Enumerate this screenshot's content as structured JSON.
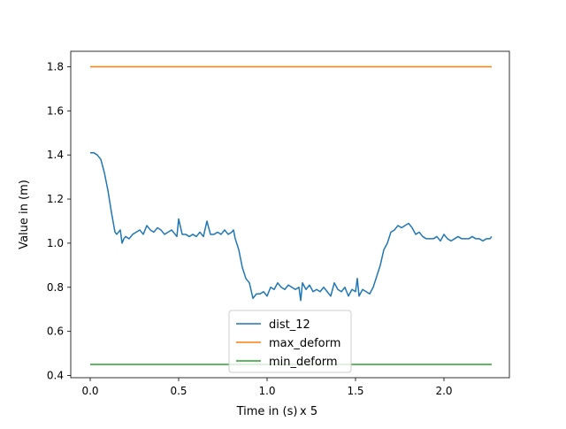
{
  "chart_data": {
    "type": "line",
    "title": "",
    "xlabel": "Time in (s)",
    "x_offset_label": "x 5",
    "ylabel": "Value in (m)",
    "xlim": [
      -0.11,
      2.37
    ],
    "ylim": [
      0.39,
      1.87
    ],
    "xticks": [
      0.0,
      0.5,
      1.0,
      1.5,
      2.0
    ],
    "xtick_labels": [
      "0.0",
      "0.5",
      "1.0",
      "1.5",
      "2.0"
    ],
    "yticks": [
      0.4,
      0.6,
      0.8,
      1.0,
      1.2,
      1.4,
      1.6,
      1.8
    ],
    "ytick_labels": [
      "0.4",
      "0.6",
      "0.8",
      "1.0",
      "1.2",
      "1.4",
      "1.6",
      "1.8"
    ],
    "grid": false,
    "legend_position": "bottom-center",
    "series": [
      {
        "name": "dist_12",
        "color": "#1f77b4",
        "x": [
          0.0,
          0.02,
          0.04,
          0.06,
          0.08,
          0.1,
          0.12,
          0.14,
          0.15,
          0.17,
          0.18,
          0.19,
          0.2,
          0.22,
          0.24,
          0.26,
          0.28,
          0.3,
          0.32,
          0.34,
          0.36,
          0.38,
          0.4,
          0.42,
          0.44,
          0.46,
          0.48,
          0.49,
          0.5,
          0.52,
          0.54,
          0.56,
          0.58,
          0.6,
          0.62,
          0.64,
          0.66,
          0.68,
          0.7,
          0.72,
          0.74,
          0.76,
          0.78,
          0.8,
          0.81,
          0.82,
          0.84,
          0.86,
          0.88,
          0.9,
          0.92,
          0.94,
          0.96,
          0.98,
          1.0,
          1.02,
          1.04,
          1.06,
          1.08,
          1.1,
          1.12,
          1.14,
          1.16,
          1.18,
          1.19,
          1.2,
          1.22,
          1.24,
          1.26,
          1.28,
          1.3,
          1.32,
          1.34,
          1.36,
          1.38,
          1.4,
          1.42,
          1.44,
          1.46,
          1.48,
          1.5,
          1.51,
          1.52,
          1.54,
          1.56,
          1.58,
          1.6,
          1.62,
          1.64,
          1.66,
          1.68,
          1.7,
          1.72,
          1.74,
          1.76,
          1.78,
          1.8,
          1.82,
          1.84,
          1.86,
          1.88,
          1.9,
          1.92,
          1.94,
          1.96,
          1.98,
          2.0,
          2.02,
          2.04,
          2.06,
          2.08,
          2.1,
          2.12,
          2.14,
          2.16,
          2.18,
          2.2,
          2.22,
          2.24,
          2.26,
          2.27
        ],
        "y": [
          1.41,
          1.41,
          1.4,
          1.38,
          1.32,
          1.24,
          1.14,
          1.05,
          1.04,
          1.06,
          1.0,
          1.02,
          1.03,
          1.02,
          1.04,
          1.05,
          1.06,
          1.04,
          1.08,
          1.06,
          1.05,
          1.07,
          1.06,
          1.04,
          1.05,
          1.06,
          1.04,
          1.03,
          1.11,
          1.04,
          1.04,
          1.03,
          1.04,
          1.03,
          1.05,
          1.03,
          1.1,
          1.04,
          1.04,
          1.05,
          1.04,
          1.06,
          1.04,
          1.05,
          1.06,
          1.02,
          0.97,
          0.89,
          0.84,
          0.82,
          0.75,
          0.77,
          0.77,
          0.78,
          0.76,
          0.8,
          0.79,
          0.82,
          0.8,
          0.79,
          0.81,
          0.8,
          0.79,
          0.8,
          0.74,
          0.82,
          0.79,
          0.81,
          0.78,
          0.79,
          0.78,
          0.8,
          0.78,
          0.76,
          0.82,
          0.79,
          0.78,
          0.8,
          0.76,
          0.79,
          0.78,
          0.84,
          0.76,
          0.79,
          0.78,
          0.77,
          0.8,
          0.85,
          0.9,
          0.97,
          1.0,
          1.05,
          1.06,
          1.08,
          1.07,
          1.08,
          1.09,
          1.07,
          1.04,
          1.05,
          1.03,
          1.02,
          1.02,
          1.02,
          1.03,
          1.01,
          1.04,
          1.02,
          1.01,
          1.02,
          1.03,
          1.02,
          1.02,
          1.02,
          1.03,
          1.02,
          1.02,
          1.01,
          1.02,
          1.02,
          1.03
        ]
      },
      {
        "name": "max_deform",
        "color": "#ff7f0e",
        "x": [
          0.0,
          2.27
        ],
        "y": [
          1.8,
          1.8
        ]
      },
      {
        "name": "min_deform",
        "color": "#2ca02c",
        "x": [
          0.0,
          2.27
        ],
        "y": [
          0.45,
          0.45
        ]
      }
    ]
  }
}
